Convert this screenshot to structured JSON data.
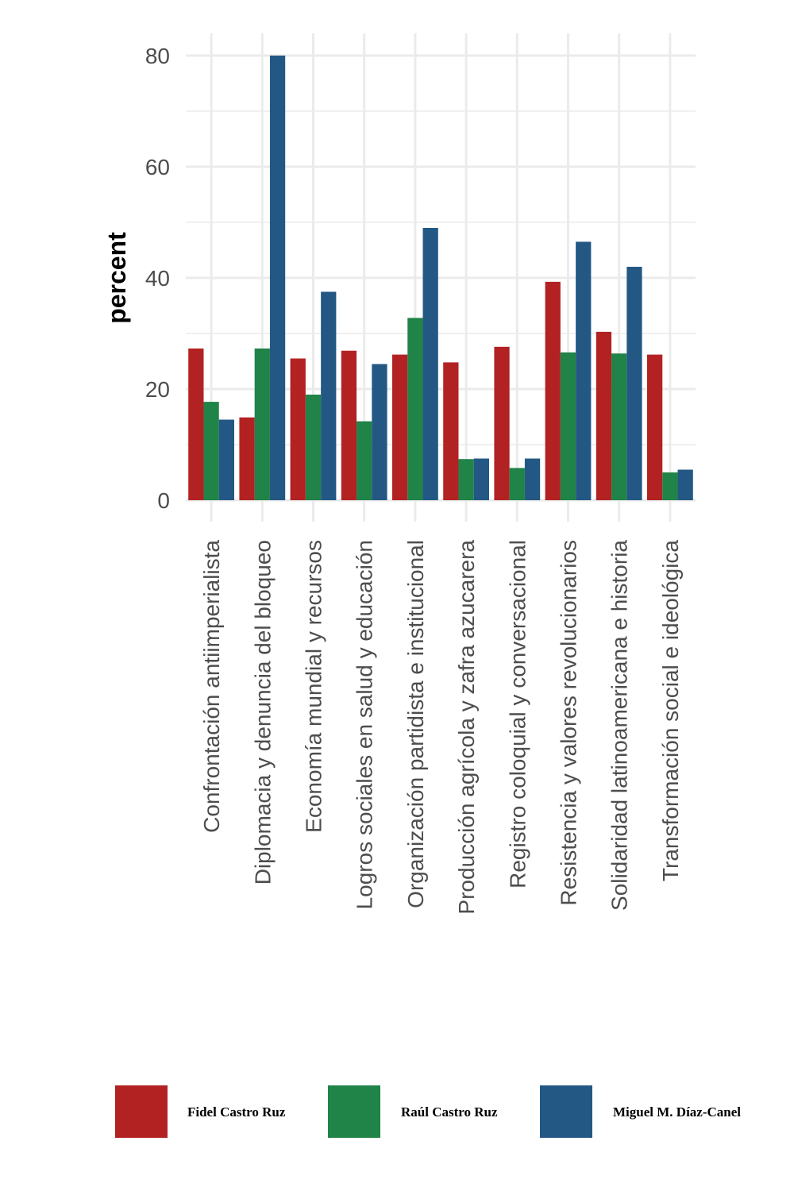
{
  "chart_data": {
    "type": "bar",
    "title": "",
    "xlabel": "",
    "ylabel": "percent",
    "ylim": [
      0,
      80
    ],
    "yticks": [
      0,
      20,
      40,
      60,
      80
    ],
    "grid": true,
    "legend_position": "bottom",
    "categories": [
      "Confrontación antiimperialista",
      "Diplomacia y denuncia del bloqueo",
      "Economía mundial y recursos",
      "Logros sociales en salud y educación",
      "Organización partidista e institucional",
      "Producción agrícola y zafra azucarera",
      "Registro coloquial y conversacional",
      "Resistencia y valores revolucionarios",
      "Solidaridad latinoamericana e historia",
      "Transformación social e ideológica"
    ],
    "series": [
      {
        "name": "Fidel Castro Ruz",
        "color": "#B22222",
        "values": [
          27.3,
          14.9,
          25.5,
          26.9,
          26.2,
          24.8,
          27.6,
          39.3,
          30.3,
          26.2
        ]
      },
      {
        "name": "Raúl Castro Ruz",
        "color": "#208347",
        "values": [
          17.7,
          27.3,
          19.0,
          14.2,
          32.8,
          7.4,
          5.8,
          26.6,
          26.4,
          5.0
        ]
      },
      {
        "name": "Miguel M. Díaz-Canel",
        "color": "#235885",
        "values": [
          14.5,
          80.0,
          37.5,
          24.5,
          49.0,
          7.5,
          7.5,
          46.5,
          42.0,
          5.5
        ]
      }
    ]
  }
}
